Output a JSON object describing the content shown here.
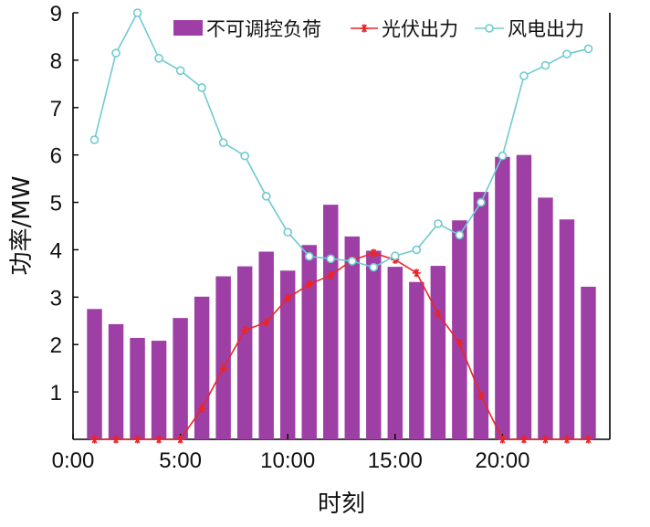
{
  "chart_data": {
    "type": "bar",
    "title": "",
    "xlabel": "时刻",
    "ylabel": "功率/MW",
    "ylim": [
      0,
      9
    ],
    "xlim": [
      0,
      25
    ],
    "y_ticks": [
      1,
      2,
      3,
      4,
      5,
      6,
      7,
      8,
      9
    ],
    "x_ticks": [
      {
        "value": 0,
        "label": "0:00"
      },
      {
        "value": 5,
        "label": "5:00"
      },
      {
        "value": 10,
        "label": "10:00"
      },
      {
        "value": 15,
        "label": "15:00"
      },
      {
        "value": 20,
        "label": "20:00"
      }
    ],
    "x": [
      1,
      2,
      3,
      4,
      5,
      6,
      7,
      8,
      9,
      10,
      11,
      12,
      13,
      14,
      15,
      16,
      17,
      18,
      19,
      20,
      21,
      22,
      23,
      24
    ],
    "series": [
      {
        "name": "不可调控负荷",
        "kind": "bar",
        "color": "#9e3fa6",
        "values": [
          2.75,
          2.43,
          2.14,
          2.08,
          2.56,
          3.01,
          3.44,
          3.65,
          3.96,
          3.56,
          4.1,
          4.95,
          4.28,
          3.98,
          3.64,
          3.32,
          3.66,
          4.62,
          5.22,
          5.96,
          6.0,
          5.1,
          4.64,
          3.22
        ]
      },
      {
        "name": "光伏出力",
        "kind": "line",
        "marker": "asterisk",
        "color": "#e8262a",
        "values": [
          0,
          0,
          0,
          0,
          0,
          0.65,
          1.5,
          2.3,
          2.47,
          2.98,
          3.27,
          3.46,
          3.78,
          3.93,
          3.79,
          3.51,
          2.65,
          2.03,
          0.92,
          0,
          0,
          0,
          0,
          0
        ]
      },
      {
        "name": "风电出力",
        "kind": "line",
        "marker": "circle",
        "color": "#6fcad1",
        "values": [
          6.32,
          8.15,
          9.0,
          8.04,
          7.78,
          7.42,
          6.26,
          5.98,
          5.13,
          4.37,
          3.86,
          3.81,
          3.76,
          3.63,
          3.87,
          4.0,
          4.55,
          4.31,
          5.0,
          5.98,
          7.67,
          7.89,
          8.13,
          8.24
        ]
      }
    ],
    "legend_position": "top-right"
  }
}
